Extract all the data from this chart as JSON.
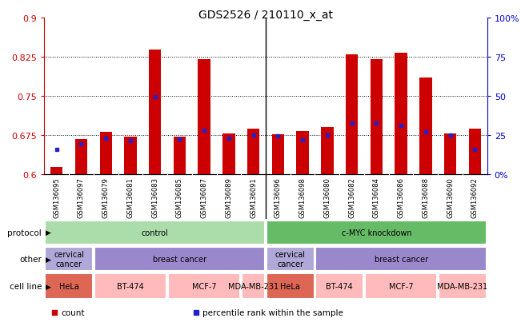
{
  "title": "GDS2526 / 210110_x_at",
  "samples": [
    "GSM136095",
    "GSM136097",
    "GSM136079",
    "GSM136081",
    "GSM136083",
    "GSM136085",
    "GSM136087",
    "GSM136089",
    "GSM136091",
    "GSM136096",
    "GSM136098",
    "GSM136080",
    "GSM136082",
    "GSM136084",
    "GSM136086",
    "GSM136088",
    "GSM136090",
    "GSM136092"
  ],
  "bar_values": [
    0.615,
    0.668,
    0.682,
    0.672,
    0.838,
    0.673,
    0.82,
    0.678,
    0.688,
    0.677,
    0.683,
    0.69,
    0.83,
    0.82,
    0.832,
    0.785,
    0.678,
    0.688
  ],
  "dot_values": [
    0.648,
    0.658,
    0.67,
    0.664,
    0.748,
    0.668,
    0.684,
    0.669,
    0.676,
    0.674,
    0.667,
    0.676,
    0.699,
    0.699,
    0.694,
    0.682,
    0.675,
    0.648
  ],
  "ylim_left": [
    0.6,
    0.9
  ],
  "ylim_right": [
    0,
    100
  ],
  "yticks_left": [
    0.6,
    0.675,
    0.75,
    0.825,
    0.9
  ],
  "yticks_right": [
    0,
    25,
    50,
    75,
    100
  ],
  "ytick_labels_left": [
    "0.6",
    "0.675",
    "0.75",
    "0.825",
    "0.9"
  ],
  "ytick_labels_right": [
    "0%",
    "25",
    "50",
    "75",
    "100%"
  ],
  "grid_lines": [
    0.675,
    0.75,
    0.825
  ],
  "bar_color": "#cc0000",
  "dot_color": "#2222cc",
  "chart_bg": "#ffffff",
  "xlabel_bg": "#d0d0d0",
  "protocol_colors": [
    "#aaddaa",
    "#55bb55"
  ],
  "other_color": "#8877bb",
  "other_light": "#aa99dd",
  "hela_color": "#dd6655",
  "breast_color": "#ffcccc",
  "legend_items": [
    {
      "label": "count",
      "color": "#cc0000"
    },
    {
      "label": "percentile rank within the sample",
      "color": "#2222cc"
    }
  ]
}
